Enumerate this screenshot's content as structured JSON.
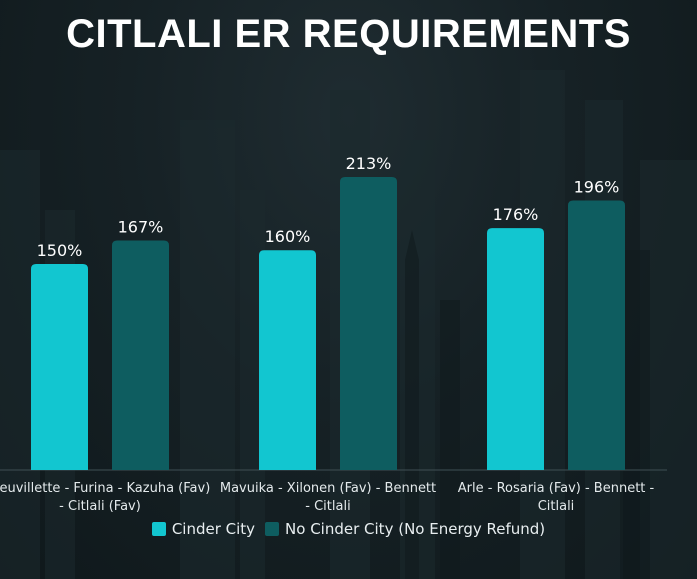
{
  "title": "CITLALI ER REQUIREMENTS",
  "colors": {
    "cinder": "#12c6d0",
    "no_cinder": "#0e5d60",
    "background": "#162125",
    "text": "#ffffff"
  },
  "legend": [
    {
      "label": "Cinder City",
      "color": "#12c6d0"
    },
    {
      "label": "No Cinder City (No Energy Refund)",
      "color": "#0e5d60"
    }
  ],
  "chart_data": {
    "type": "bar",
    "title": "CITLALI ER REQUIREMENTS",
    "categories": [
      [
        "Neuvillette - Furina - Kazuha (Fav)",
        "- Citlali (Fav)"
      ],
      [
        "Mavuika - Xilonen (Fav) - Bennett",
        "- Citlali"
      ],
      [
        "Arle - Rosaria (Fav) - Bennett -",
        "Citlali"
      ]
    ],
    "series": [
      {
        "name": "Cinder City",
        "values": [
          150,
          160,
          176
        ],
        "labels": [
          "150%",
          "160%",
          "176%"
        ],
        "color": "#12c6d0"
      },
      {
        "name": "No Cinder City (No Energy Refund)",
        "values": [
          167,
          213,
          196
        ],
        "labels": [
          "167%",
          "213%",
          "196%"
        ],
        "color": "#0e5d60"
      }
    ],
    "ylim": [
      0,
      250
    ],
    "legend_position": "bottom",
    "grid": false
  }
}
